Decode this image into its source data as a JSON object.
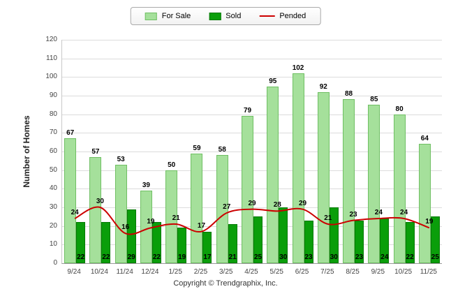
{
  "legend": {
    "for_sale": "For Sale",
    "sold": "Sold",
    "pended": "Pended"
  },
  "footer": "Copyright © Trendgraphix, Inc.",
  "colors": {
    "for_sale": "#a5e09b",
    "for_sale_border": "#6fbf63",
    "sold": "#0a9e0a",
    "sold_border": "#067806",
    "pended": "#cc0000",
    "grid": "#dcdcdc",
    "axis": "#999999"
  },
  "chart_data": {
    "type": "bar",
    "title": "",
    "xlabel": "",
    "ylabel": "Number of Homes",
    "categories": [
      "9/24",
      "10/24",
      "11/24",
      "12/24",
      "1/25",
      "2/25",
      "3/25",
      "4/25",
      "5/25",
      "6/25",
      "7/25",
      "8/25",
      "9/25",
      "10/25",
      "11/25"
    ],
    "series": [
      {
        "name": "For Sale",
        "type": "bar",
        "color": "#a5e09b",
        "values": [
          67,
          57,
          53,
          39,
          50,
          59,
          58,
          79,
          95,
          102,
          92,
          88,
          85,
          80,
          64
        ]
      },
      {
        "name": "Sold",
        "type": "bar",
        "color": "#0a9e0a",
        "values": [
          22,
          22,
          29,
          22,
          19,
          17,
          21,
          25,
          30,
          23,
          30,
          23,
          24,
          22,
          25
        ]
      },
      {
        "name": "Pended",
        "type": "line",
        "color": "#cc0000",
        "values": [
          24,
          30,
          16,
          19,
          21,
          17,
          27,
          29,
          28,
          29,
          21,
          23,
          24,
          24,
          19
        ]
      }
    ],
    "ylim": [
      0,
      120
    ],
    "yticks": [
      0,
      10,
      20,
      30,
      40,
      50,
      60,
      70,
      80,
      90,
      100,
      110,
      120
    ],
    "grid": true,
    "legend_position": "top"
  }
}
